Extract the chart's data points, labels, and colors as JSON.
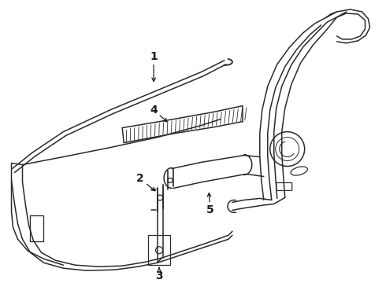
{
  "bg_color": "#ffffff",
  "line_color": "#2a2a2a",
  "lw": 1.1,
  "fig_width": 4.9,
  "fig_height": 3.6
}
